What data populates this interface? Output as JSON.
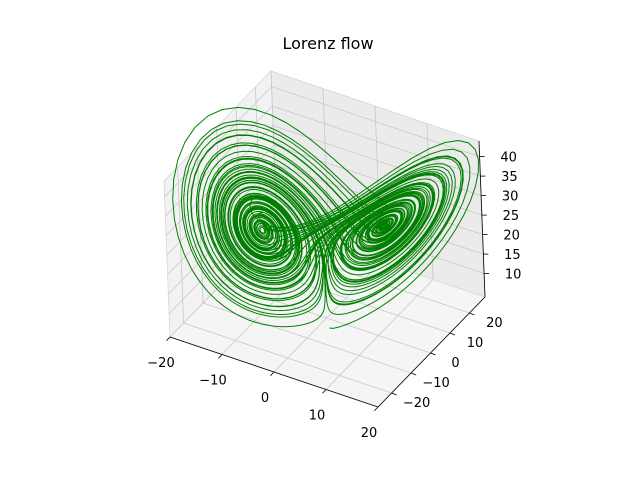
{
  "chart_data": {
    "type": "line",
    "projection": "3d",
    "title": "Lorenz flow",
    "xlabel": "",
    "ylabel": "",
    "zlabel": "",
    "series": [
      {
        "color": "#008000",
        "system": "lorenz",
        "parameters": {
          "sigma": 10,
          "rho": 28,
          "beta": 2.6667
        },
        "initial_state": [
          0.0,
          1.0,
          1.05
        ],
        "time_step": 0.01,
        "steps": 10000
      }
    ],
    "xlim": [
      -20,
      20
    ],
    "ylim": [
      -27,
      28
    ],
    "zlim": [
      4,
      44
    ],
    "x_ticks": [
      "−20",
      "−10",
      "0",
      "10",
      "20"
    ],
    "y_ticks": [
      "−20",
      "−10",
      "0",
      "10",
      "20"
    ],
    "z_ticks": [
      "10",
      "15",
      "20",
      "25",
      "30",
      "35",
      "40"
    ],
    "grid": true
  }
}
